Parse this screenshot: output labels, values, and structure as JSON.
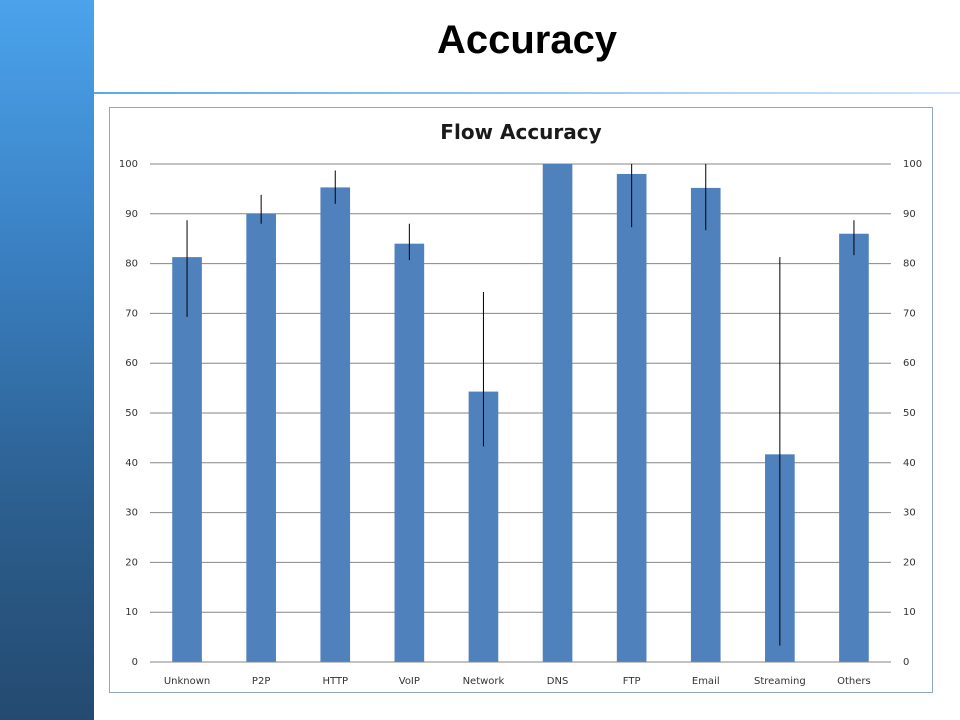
{
  "slide": {
    "title": "Accuracy"
  },
  "colors": {
    "bar": "#4f81bd",
    "error_bar": "#000000",
    "gridline": "#868686",
    "sidebar": "#2c5f8f"
  },
  "chart_data": {
    "type": "bar",
    "title": "Flow Accuracy",
    "categories": [
      "Unknown",
      "P2P",
      "HTTP",
      "VoIP",
      "Network",
      "DNS",
      "FTP",
      "Email",
      "Streaming",
      "Others"
    ],
    "series": [
      {
        "values": [
          81.3,
          90.0,
          95.3,
          84.0,
          54.3,
          100.0,
          98.0,
          95.2,
          41.7,
          86.0
        ],
        "error_low": [
          69.3,
          88.0,
          92.0,
          80.7,
          43.3,
          100.0,
          87.3,
          86.7,
          3.3,
          81.7
        ],
        "error_high": [
          88.7,
          93.8,
          98.7,
          88.0,
          74.3,
          100.0,
          100.0,
          100.0,
          81.3,
          88.7
        ]
      }
    ],
    "ylim": [
      0,
      100
    ],
    "yticks": [
      "0",
      "10",
      "20",
      "30",
      "40",
      "50",
      "60",
      "70",
      "80",
      "90",
      "100"
    ],
    "secondary_axis": true,
    "grid": true,
    "legend": "none",
    "xlabel": "",
    "ylabel": ""
  }
}
